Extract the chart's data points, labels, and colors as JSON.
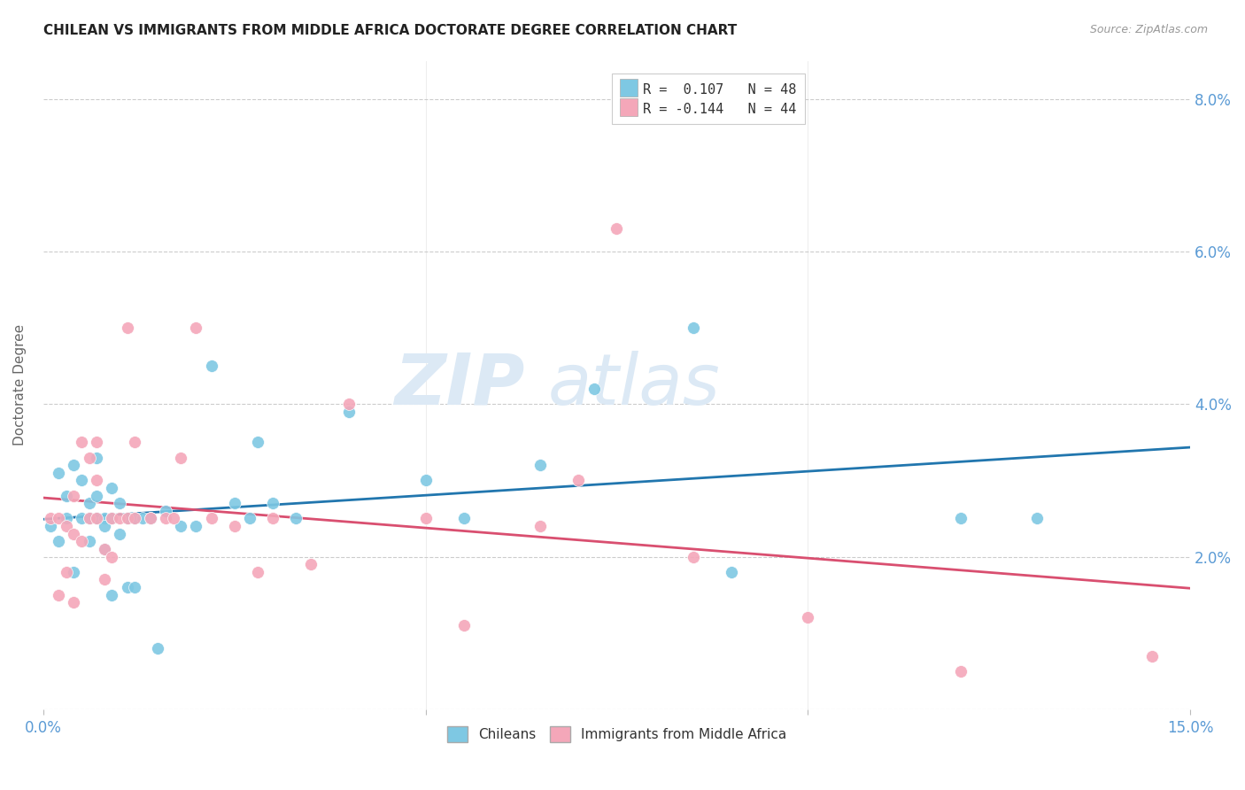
{
  "title": "CHILEAN VS IMMIGRANTS FROM MIDDLE AFRICA DOCTORATE DEGREE CORRELATION CHART",
  "source": "Source: ZipAtlas.com",
  "ylabel": "Doctorate Degree",
  "xmin": 0.0,
  "xmax": 0.15,
  "ymin": 0.0,
  "ymax": 0.085,
  "ytick_vals": [
    0.0,
    0.02,
    0.04,
    0.06,
    0.08
  ],
  "ytick_labels": [
    "",
    "2.0%",
    "4.0%",
    "6.0%",
    "8.0%"
  ],
  "legend1_r": "0.107",
  "legend1_n": "48",
  "legend2_r": "-0.144",
  "legend2_n": "44",
  "blue_color": "#7ec8e3",
  "pink_color": "#f4a7b9",
  "blue_line_color": "#2176ae",
  "pink_line_color": "#d94f70",
  "axis_color": "#5b9bd5",
  "grid_color": "#cccccc",
  "title_color": "#222222",
  "watermark_color": "#dce9f5",
  "chileans_x": [
    0.001,
    0.002,
    0.002,
    0.003,
    0.003,
    0.004,
    0.004,
    0.005,
    0.005,
    0.006,
    0.006,
    0.006,
    0.007,
    0.007,
    0.007,
    0.008,
    0.008,
    0.008,
    0.009,
    0.009,
    0.009,
    0.01,
    0.01,
    0.011,
    0.011,
    0.012,
    0.012,
    0.013,
    0.014,
    0.015,
    0.016,
    0.018,
    0.02,
    0.022,
    0.025,
    0.027,
    0.028,
    0.03,
    0.033,
    0.04,
    0.05,
    0.055,
    0.065,
    0.072,
    0.085,
    0.09,
    0.12,
    0.13
  ],
  "chileans_y": [
    0.024,
    0.031,
    0.022,
    0.028,
    0.025,
    0.032,
    0.018,
    0.03,
    0.025,
    0.027,
    0.022,
    0.025,
    0.028,
    0.025,
    0.033,
    0.025,
    0.024,
    0.021,
    0.025,
    0.015,
    0.029,
    0.023,
    0.027,
    0.025,
    0.016,
    0.025,
    0.016,
    0.025,
    0.025,
    0.008,
    0.026,
    0.024,
    0.024,
    0.045,
    0.027,
    0.025,
    0.035,
    0.027,
    0.025,
    0.039,
    0.03,
    0.025,
    0.032,
    0.042,
    0.05,
    0.018,
    0.025,
    0.025
  ],
  "immigrants_x": [
    0.001,
    0.002,
    0.002,
    0.003,
    0.003,
    0.004,
    0.004,
    0.004,
    0.005,
    0.005,
    0.006,
    0.006,
    0.007,
    0.007,
    0.007,
    0.008,
    0.008,
    0.009,
    0.009,
    0.01,
    0.011,
    0.011,
    0.012,
    0.012,
    0.014,
    0.016,
    0.017,
    0.018,
    0.02,
    0.022,
    0.025,
    0.028,
    0.03,
    0.035,
    0.04,
    0.05,
    0.055,
    0.065,
    0.07,
    0.075,
    0.085,
    0.1,
    0.12,
    0.145
  ],
  "immigrants_y": [
    0.025,
    0.025,
    0.015,
    0.024,
    0.018,
    0.028,
    0.023,
    0.014,
    0.035,
    0.022,
    0.033,
    0.025,
    0.035,
    0.03,
    0.025,
    0.017,
    0.021,
    0.025,
    0.02,
    0.025,
    0.025,
    0.05,
    0.035,
    0.025,
    0.025,
    0.025,
    0.025,
    0.033,
    0.05,
    0.025,
    0.024,
    0.018,
    0.025,
    0.019,
    0.04,
    0.025,
    0.011,
    0.024,
    0.03,
    0.063,
    0.02,
    0.012,
    0.005,
    0.007
  ]
}
